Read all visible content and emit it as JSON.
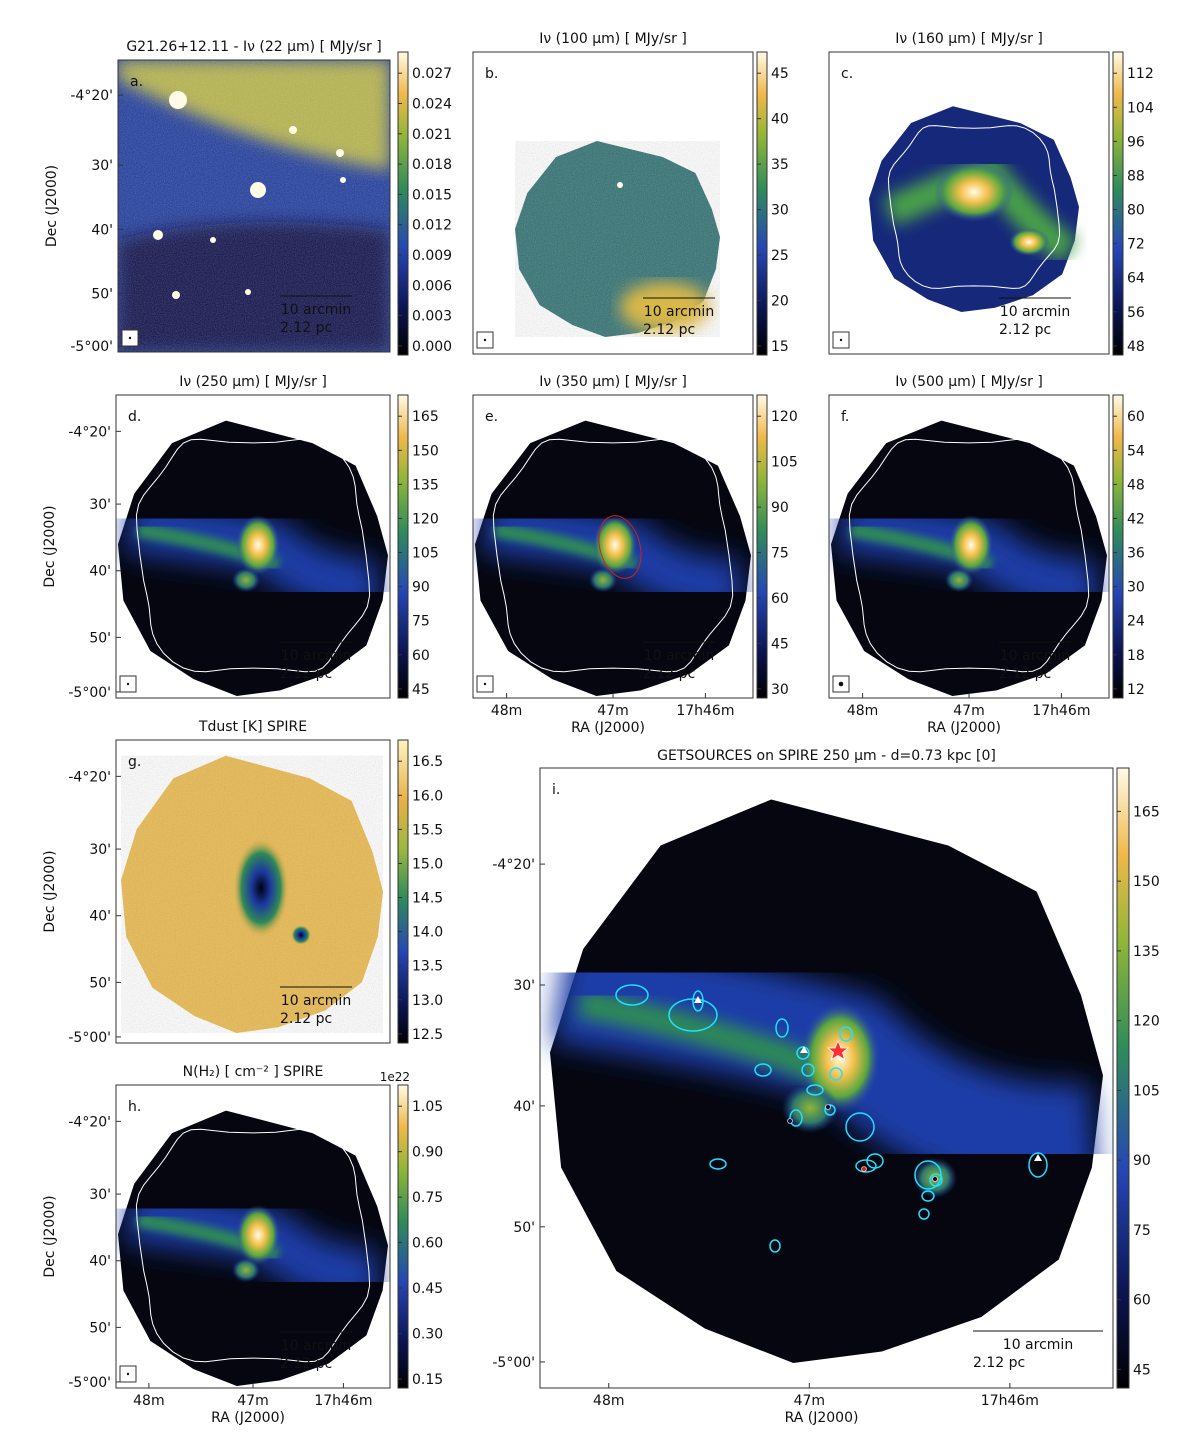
{
  "figure": {
    "source_title_prefix": "G21.26+12.11 - ",
    "panels": [
      {
        "id": "a",
        "letter": "a.",
        "title": "Iν (22 μm)  [ MJy/sr ]",
        "cb_ticks": [
          "0.027",
          "0.024",
          "0.021",
          "0.018",
          "0.015",
          "0.012",
          "0.009",
          "0.006",
          "0.003",
          "0.000"
        ],
        "scalebar": [
          "10 arcmin",
          "2.12 pc"
        ],
        "y_ticks": [
          "-4°20'",
          "30'",
          "40'",
          "50'",
          "-5°00'"
        ],
        "y_label": "Dec (J2000)",
        "x_ticks": [],
        "x_label": ""
      },
      {
        "id": "b",
        "letter": "b.",
        "title": "Iν (100 μm) [ MJy/sr ]",
        "cb_ticks": [
          "45",
          "40",
          "35",
          "30",
          "25",
          "20",
          "15"
        ],
        "scalebar": [
          "10 arcmin",
          "2.12 pc"
        ]
      },
      {
        "id": "c",
        "letter": "c.",
        "title": "Iν (160 μm) [ MJy/sr ]",
        "cb_ticks": [
          "112",
          "104",
          "96",
          "88",
          "80",
          "72",
          "64",
          "56",
          "48"
        ],
        "scalebar": [
          "10 arcmin",
          "2.12 pc"
        ]
      },
      {
        "id": "d",
        "letter": "d.",
        "title": "Iν (250 μm) [ MJy/sr ]",
        "cb_ticks": [
          "165",
          "150",
          "135",
          "120",
          "105",
          "90",
          "75",
          "60",
          "45"
        ],
        "scalebar": [
          "10 arcmin",
          "2.12 pc"
        ],
        "y_ticks": [
          "-4°20'",
          "30'",
          "40'",
          "50'",
          "-5°00'"
        ],
        "y_label": "Dec (J2000)"
      },
      {
        "id": "e",
        "letter": "e.",
        "title": "Iν (350 μm) [ MJy/sr ]",
        "cb_ticks": [
          "120",
          "105",
          "90",
          "75",
          "60",
          "45",
          "30"
        ],
        "scalebar": [
          "10 arcmin",
          "2.12 pc"
        ],
        "x_ticks": [
          "48m",
          "47m",
          "17h46m"
        ],
        "x_label": "RA (J2000)"
      },
      {
        "id": "f",
        "letter": "f.",
        "title": "Iν (500 μm) [ MJy/sr ]",
        "cb_ticks": [
          "60",
          "54",
          "48",
          "42",
          "36",
          "30",
          "24",
          "18",
          "12"
        ],
        "scalebar": [
          "10 arcmin",
          "2.12 pc"
        ],
        "x_ticks": [
          "48m",
          "47m",
          "17h46m"
        ],
        "x_label": "RA (J2000)"
      },
      {
        "id": "g",
        "letter": "g.",
        "title": "Tdust [K] SPIRE",
        "cb_ticks": [
          "16.5",
          "16.0",
          "15.5",
          "15.0",
          "14.5",
          "14.0",
          "13.5",
          "13.0",
          "12.5"
        ],
        "scalebar": [
          "10 arcmin",
          "2.12 pc"
        ],
        "y_ticks": [
          "-4°20'",
          "30'",
          "40'",
          "50'",
          "-5°00'"
        ],
        "y_label": "Dec (J2000)"
      },
      {
        "id": "h",
        "letter": "h.",
        "title": "N(H₂) [ cm⁻² ] SPIRE",
        "cb_exponent": "1e22",
        "cb_ticks": [
          "1.05",
          "0.90",
          "0.75",
          "0.60",
          "0.45",
          "0.30",
          "0.15"
        ],
        "scalebar": [
          "10 arcmin",
          "2.12 pc"
        ],
        "y_ticks": [
          "-4°20'",
          "30'",
          "40'",
          "50'",
          "-5°00'"
        ],
        "y_label": "Dec (J2000)",
        "x_ticks": [
          "48m",
          "47m",
          "17h46m"
        ],
        "x_label": "RA (J2000)"
      },
      {
        "id": "i",
        "letter": "i.",
        "title": "GETSOURCES on SPIRE 250 μm  -  d=0.73 kpc [0]",
        "cb_ticks": [
          "165",
          "150",
          "135",
          "120",
          "105",
          "90",
          "75",
          "60",
          "45"
        ],
        "scalebar": [
          "10 arcmin",
          "2.12 pc"
        ],
        "y_ticks": [
          "-4°20'",
          "30'",
          "40'",
          "50'",
          "-5°00'"
        ],
        "x_ticks": [
          "48m",
          "47m",
          "17h46m"
        ],
        "x_label": "RA (J2000)"
      }
    ]
  },
  "colors": {
    "map_dark": "#05060f",
    "map_blue": "#1f3ea8",
    "map_green": "#3f9a42",
    "map_yellow": "#f2c34a",
    "map_white": "#fffbe6",
    "source_ellipse": "#22e0ff",
    "mask_contour": "#ffffff"
  }
}
